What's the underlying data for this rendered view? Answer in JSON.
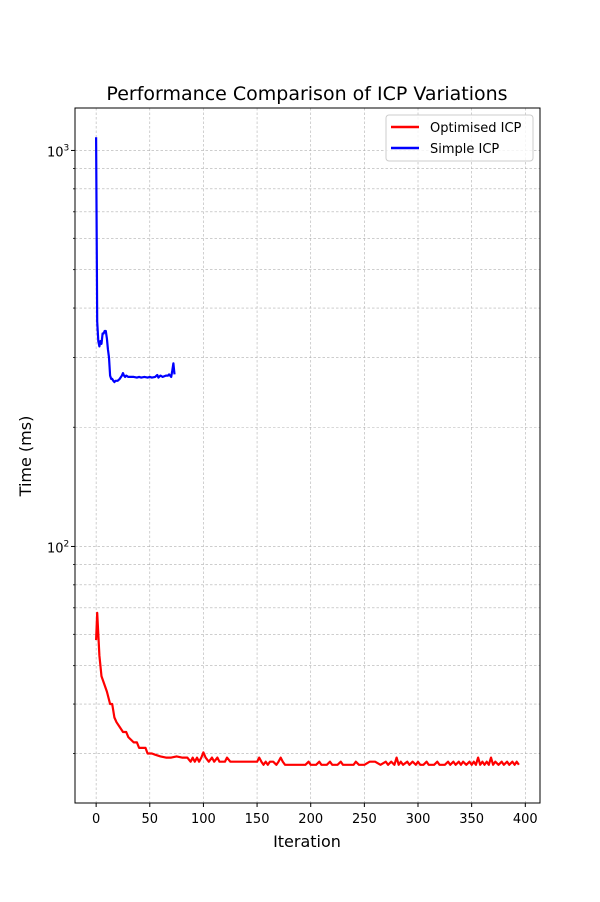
{
  "chart_data": {
    "type": "line",
    "title": "Performance Comparison of ICP Variations",
    "xlabel": "Iteration",
    "ylabel": "Time (ms)",
    "xlim": [
      -19.7,
      413.7
    ],
    "ylim": [
      22.5,
      1280
    ],
    "yscale": "log",
    "grid": true,
    "legend_position": "top-right",
    "x_ticks": [
      0,
      50,
      100,
      150,
      200,
      250,
      300,
      350,
      400
    ],
    "y_ticks": [
      {
        "value": 100,
        "base": "10",
        "exp": "2"
      },
      {
        "value": 1000,
        "base": "10",
        "exp": "3"
      }
    ],
    "series": [
      {
        "name": "Optimised ICP",
        "color": "#ff0000",
        "points": [
          [
            0,
            58
          ],
          [
            1,
            68
          ],
          [
            2,
            60
          ],
          [
            3,
            53
          ],
          [
            5,
            47
          ],
          [
            10,
            43
          ],
          [
            13,
            40
          ],
          [
            15,
            40
          ],
          [
            17,
            37
          ],
          [
            19,
            36
          ],
          [
            22,
            35
          ],
          [
            25,
            34
          ],
          [
            28,
            34
          ],
          [
            30,
            33
          ],
          [
            35,
            32
          ],
          [
            38,
            32
          ],
          [
            40,
            31
          ],
          [
            43,
            31
          ],
          [
            46,
            31
          ],
          [
            48,
            30
          ],
          [
            50,
            30
          ],
          [
            52,
            30
          ],
          [
            55,
            29.8
          ],
          [
            60,
            29.5
          ],
          [
            65,
            29.3
          ],
          [
            70,
            29.3
          ],
          [
            75,
            29.5
          ],
          [
            80,
            29.3
          ],
          [
            85,
            29.3
          ],
          [
            88,
            28.6
          ],
          [
            90,
            29.3
          ],
          [
            92,
            28.6
          ],
          [
            94,
            29.3
          ],
          [
            96,
            28.6
          ],
          [
            98,
            29.3
          ],
          [
            100,
            30.2
          ],
          [
            102,
            29.3
          ],
          [
            105,
            28.6
          ],
          [
            108,
            29.3
          ],
          [
            110,
            28.6
          ],
          [
            113,
            29.3
          ],
          [
            115,
            28.6
          ],
          [
            118,
            28.6
          ],
          [
            120,
            28.6
          ],
          [
            122,
            29.3
          ],
          [
            125,
            28.6
          ],
          [
            130,
            28.6
          ],
          [
            140,
            28.6
          ],
          [
            150,
            28.6
          ],
          [
            152,
            29.3
          ],
          [
            154,
            28.6
          ],
          [
            156,
            28.1
          ],
          [
            158,
            28.6
          ],
          [
            160,
            28.1
          ],
          [
            162,
            28.6
          ],
          [
            165,
            28.6
          ],
          [
            168,
            28.1
          ],
          [
            170,
            28.6
          ],
          [
            172,
            29.3
          ],
          [
            174,
            28.6
          ],
          [
            176,
            28.1
          ],
          [
            180,
            28.1
          ],
          [
            185,
            28.1
          ],
          [
            190,
            28.1
          ],
          [
            195,
            28.1
          ],
          [
            198,
            28.6
          ],
          [
            200,
            28.1
          ],
          [
            205,
            28.1
          ],
          [
            208,
            28.6
          ],
          [
            210,
            28.1
          ],
          [
            215,
            28.1
          ],
          [
            218,
            28.6
          ],
          [
            220,
            28.1
          ],
          [
            225,
            28.1
          ],
          [
            228,
            28.6
          ],
          [
            230,
            28.1
          ],
          [
            235,
            28.1
          ],
          [
            240,
            28.1
          ],
          [
            242,
            28.6
          ],
          [
            245,
            28.1
          ],
          [
            250,
            28.1
          ],
          [
            255,
            28.6
          ],
          [
            260,
            28.6
          ],
          [
            265,
            28.1
          ],
          [
            270,
            28.6
          ],
          [
            272,
            28.1
          ],
          [
            275,
            28.6
          ],
          [
            278,
            28.1
          ],
          [
            280,
            29.3
          ],
          [
            282,
            28.1
          ],
          [
            284,
            28.6
          ],
          [
            286,
            28.1
          ],
          [
            290,
            28.6
          ],
          [
            292,
            28.1
          ],
          [
            295,
            28.6
          ],
          [
            298,
            28.1
          ],
          [
            300,
            28.6
          ],
          [
            302,
            28.1
          ],
          [
            305,
            28.1
          ],
          [
            308,
            28.6
          ],
          [
            310,
            28.1
          ],
          [
            315,
            28.1
          ],
          [
            318,
            28.6
          ],
          [
            320,
            28.1
          ],
          [
            325,
            28.1
          ],
          [
            328,
            28.6
          ],
          [
            330,
            28.1
          ],
          [
            333,
            28.6
          ],
          [
            335,
            28.1
          ],
          [
            338,
            28.6
          ],
          [
            340,
            28.1
          ],
          [
            342,
            28.6
          ],
          [
            345,
            28.1
          ],
          [
            348,
            28.6
          ],
          [
            350,
            28.1
          ],
          [
            352,
            28.6
          ],
          [
            354,
            28.1
          ],
          [
            356,
            29.3
          ],
          [
            358,
            28.1
          ],
          [
            360,
            28.6
          ],
          [
            362,
            28.1
          ],
          [
            364,
            28.6
          ],
          [
            366,
            28.1
          ],
          [
            368,
            29.3
          ],
          [
            370,
            28.1
          ],
          [
            372,
            28.6
          ],
          [
            375,
            28.1
          ],
          [
            378,
            28.6
          ],
          [
            380,
            28.1
          ],
          [
            383,
            28.6
          ],
          [
            385,
            28.1
          ],
          [
            388,
            28.6
          ],
          [
            390,
            28.1
          ],
          [
            392,
            28.6
          ],
          [
            394,
            28.1
          ]
        ]
      },
      {
        "name": "Simple ICP",
        "color": "#0000ff",
        "points": [
          [
            0,
            1080
          ],
          [
            1,
            370
          ],
          [
            2,
            330
          ],
          [
            3,
            320
          ],
          [
            4,
            330
          ],
          [
            5,
            325
          ],
          [
            6,
            345
          ],
          [
            7,
            345
          ],
          [
            8,
            350
          ],
          [
            9,
            350
          ],
          [
            10,
            335
          ],
          [
            11,
            315
          ],
          [
            12,
            300
          ],
          [
            13,
            270
          ],
          [
            14,
            265
          ],
          [
            15,
            265
          ],
          [
            16,
            262
          ],
          [
            17,
            260
          ],
          [
            18,
            262
          ],
          [
            20,
            262
          ],
          [
            22,
            265
          ],
          [
            24,
            270
          ],
          [
            25,
            274
          ],
          [
            26,
            270
          ],
          [
            27,
            268
          ],
          [
            28,
            270
          ],
          [
            30,
            268
          ],
          [
            32,
            268
          ],
          [
            35,
            268
          ],
          [
            38,
            267
          ],
          [
            40,
            268
          ],
          [
            42,
            267
          ],
          [
            45,
            268
          ],
          [
            48,
            267
          ],
          [
            50,
            268
          ],
          [
            52,
            267
          ],
          [
            55,
            268
          ],
          [
            57,
            271
          ],
          [
            58,
            267
          ],
          [
            60,
            270
          ],
          [
            62,
            268
          ],
          [
            65,
            270
          ],
          [
            67,
            270
          ],
          [
            68,
            272
          ],
          [
            70,
            268
          ],
          [
            71,
            278
          ],
          [
            72,
            290
          ],
          [
            73,
            272
          ]
        ]
      }
    ]
  }
}
